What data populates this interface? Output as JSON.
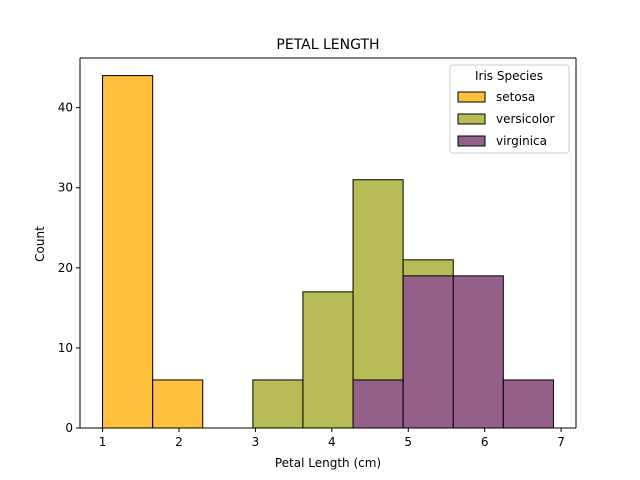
{
  "chart_data": {
    "type": "bar",
    "title": "PETAL LENGTH",
    "xlabel": "Petal Length (cm)",
    "ylabel": "Count",
    "xlim": [
      0.705,
      7.195
    ],
    "ylim": [
      0,
      46.2
    ],
    "xticks": [
      1,
      2,
      3,
      4,
      5,
      6,
      7
    ],
    "yticks": [
      0,
      10,
      20,
      30,
      40
    ],
    "bin_edges": [
      1.0,
      1.656,
      2.311,
      2.967,
      3.622,
      4.278,
      4.933,
      5.589,
      6.244,
      6.9
    ],
    "grid": false,
    "legend": {
      "title": "Iris Species",
      "placement": "top-right"
    },
    "series": [
      {
        "name": "setosa",
        "color": "#FFC13B",
        "values": [
          44,
          6,
          0,
          0,
          0,
          0,
          0,
          0,
          0
        ]
      },
      {
        "name": "versicolor",
        "color": "#B7BC57",
        "values": [
          0,
          0,
          0,
          6,
          17,
          31,
          21,
          0,
          0
        ]
      },
      {
        "name": "virginica",
        "color": "#94608A",
        "values": [
          0,
          0,
          0,
          0,
          0,
          6,
          19,
          19,
          6
        ]
      }
    ]
  }
}
